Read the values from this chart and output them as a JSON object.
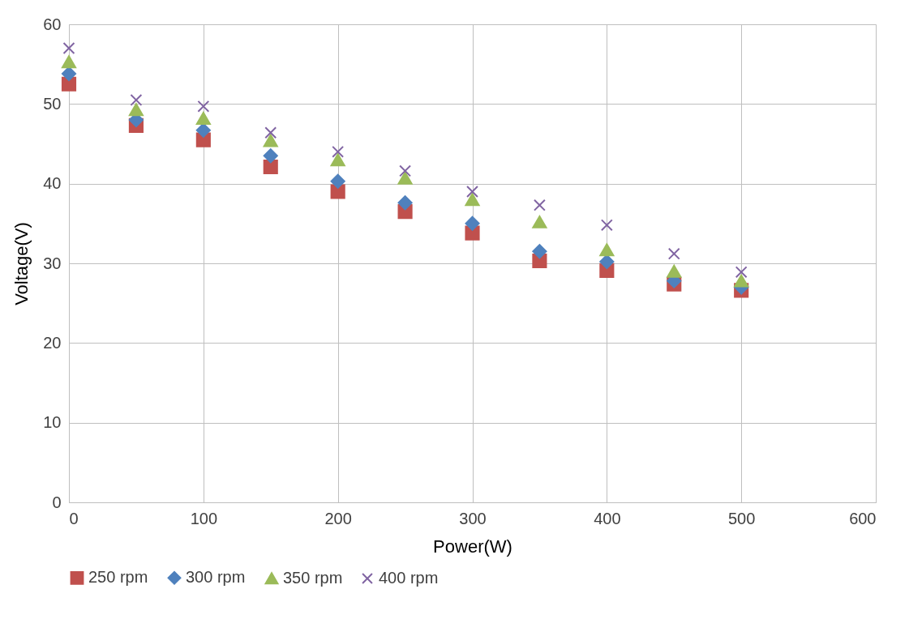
{
  "chart_data": {
    "type": "scatter",
    "xlabel": "Power(W)",
    "ylabel": "Voltage(V)",
    "x": [
      0,
      50,
      100,
      150,
      200,
      250,
      300,
      350,
      400,
      450,
      500
    ],
    "series": [
      {
        "name": "250 rpm",
        "color": "#c0504d",
        "marker": "square",
        "values": [
          52.5,
          47.3,
          45.5,
          42.1,
          39.0,
          36.5,
          33.8,
          30.3,
          29.1,
          27.4,
          26.6
        ]
      },
      {
        "name": "300 rpm",
        "color": "#4f81bd",
        "marker": "diamond",
        "values": [
          53.8,
          48.0,
          46.7,
          43.5,
          40.3,
          37.6,
          35.0,
          31.5,
          30.2,
          27.8,
          27.0
        ]
      },
      {
        "name": "350 rpm",
        "color": "#9bbb59",
        "marker": "triangle",
        "values": [
          55.3,
          49.3,
          48.2,
          45.4,
          43.0,
          40.7,
          38.0,
          35.2,
          31.7,
          29.0,
          27.8
        ]
      },
      {
        "name": "400 rpm",
        "color": "#8064a2",
        "marker": "cross",
        "values": [
          57.0,
          50.5,
          49.7,
          46.4,
          44.0,
          41.6,
          39.0,
          37.3,
          34.8,
          31.2,
          28.9
        ]
      }
    ],
    "xlim": [
      0,
      600
    ],
    "xticks": [
      0,
      100,
      200,
      300,
      400,
      500,
      600
    ],
    "ylim": [
      0,
      60
    ],
    "yticks": [
      0,
      10,
      20,
      30,
      40,
      50,
      60
    ],
    "grid": true,
    "legend": "bottom"
  }
}
